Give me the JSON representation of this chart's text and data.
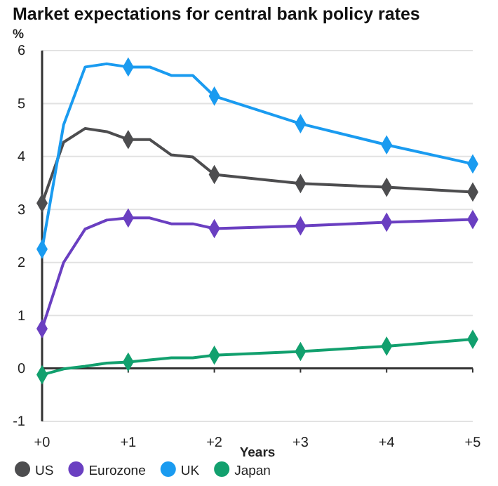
{
  "chart_data": {
    "type": "line",
    "title": "Market expectations for central bank policy rates",
    "ylabel": "%",
    "xlabel": "Years",
    "xlim": [
      0,
      5
    ],
    "xticks": [
      {
        "value": 0,
        "label": "+0"
      },
      {
        "value": 1,
        "label": "+1"
      },
      {
        "value": 2,
        "label": "+2"
      },
      {
        "value": 3,
        "label": "+3"
      },
      {
        "value": 4,
        "label": "+4"
      },
      {
        "value": 5,
        "label": "+5"
      }
    ],
    "ylim": [
      -1,
      6
    ],
    "yticks": [
      -1,
      0,
      1,
      2,
      3,
      4,
      5,
      6
    ],
    "grid": "y",
    "legend": "bottom",
    "marker": "diamond",
    "series": [
      {
        "name": "US",
        "color": "#4d4d4f",
        "x": [
          0,
          0.25,
          0.5,
          0.75,
          1,
          1.25,
          1.5,
          1.75,
          2,
          3,
          4,
          5
        ],
        "values": [
          3.12,
          4.27,
          4.53,
          4.47,
          4.32,
          4.32,
          4.03,
          3.99,
          3.66,
          3.49,
          3.42,
          3.33
        ]
      },
      {
        "name": "Eurozone",
        "color": "#6a3fc1",
        "x": [
          0,
          0.25,
          0.5,
          0.75,
          1,
          1.25,
          1.5,
          1.75,
          2,
          3,
          4,
          5
        ],
        "values": [
          0.75,
          2.0,
          2.63,
          2.8,
          2.84,
          2.84,
          2.73,
          2.73,
          2.64,
          2.69,
          2.76,
          2.81
        ]
      },
      {
        "name": "UK",
        "color": "#1a9bf0",
        "x": [
          0,
          0.25,
          0.5,
          0.75,
          1,
          1.25,
          1.5,
          1.75,
          2,
          3,
          4,
          5
        ],
        "values": [
          2.25,
          4.6,
          5.69,
          5.75,
          5.69,
          5.69,
          5.53,
          5.53,
          5.14,
          4.62,
          4.22,
          3.86
        ]
      },
      {
        "name": "Japan",
        "color": "#12a06e",
        "x": [
          0,
          0.25,
          0.5,
          0.75,
          1,
          1.5,
          1.75,
          2,
          3,
          4,
          5
        ],
        "values": [
          -0.12,
          -0.01,
          0.04,
          0.1,
          0.12,
          0.2,
          0.2,
          0.25,
          0.32,
          0.42,
          0.55
        ]
      }
    ]
  }
}
